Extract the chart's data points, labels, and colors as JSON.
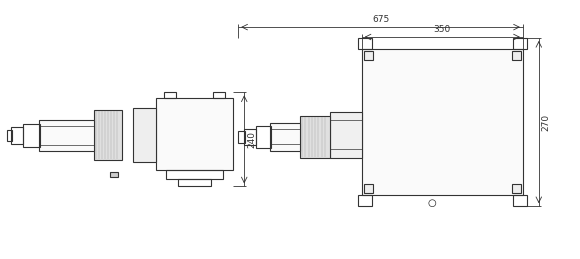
{
  "background_color": "#ffffff",
  "line_color": "#333333",
  "dim_color": "#333333",
  "line_width": 0.8,
  "thin_lw": 0.5,
  "dim_lw": 0.6,
  "dim_675": "675",
  "dim_350": "350",
  "dim_240": "240",
  "dim_270": "270",
  "figw": 5.8,
  "figh": 2.59,
  "dpi": 100
}
